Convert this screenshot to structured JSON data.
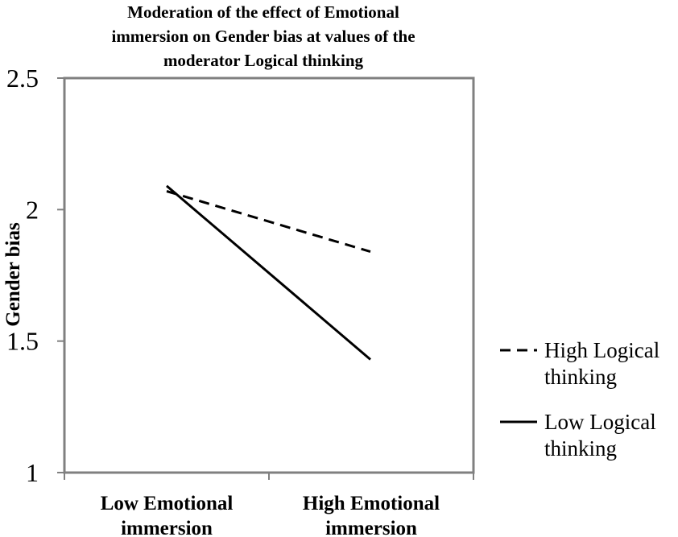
{
  "chart_data": {
    "type": "line",
    "title_lines": [
      "Moderation of the effect of Emotional",
      "immersion on Gender bias at values of the",
      "moderator Logical thinking"
    ],
    "categories": [
      [
        "Low Emotional",
        "immersion"
      ],
      [
        "High Emotional",
        "immersion"
      ]
    ],
    "ylabel": "Gender bias",
    "xlabel": "",
    "ylim": [
      1,
      2.5
    ],
    "yticks": [
      "1",
      "1.5",
      "2",
      "2.5"
    ],
    "grid": false,
    "legend_position": "right",
    "series": [
      {
        "name_lines": [
          "High Logical",
          "thinking"
        ],
        "style": "dashed",
        "color": "#000000",
        "values": [
          2.07,
          1.84
        ]
      },
      {
        "name_lines": [
          "Low Logical",
          "thinking"
        ],
        "style": "solid",
        "color": "#000000",
        "values": [
          2.09,
          1.43
        ]
      }
    ]
  }
}
